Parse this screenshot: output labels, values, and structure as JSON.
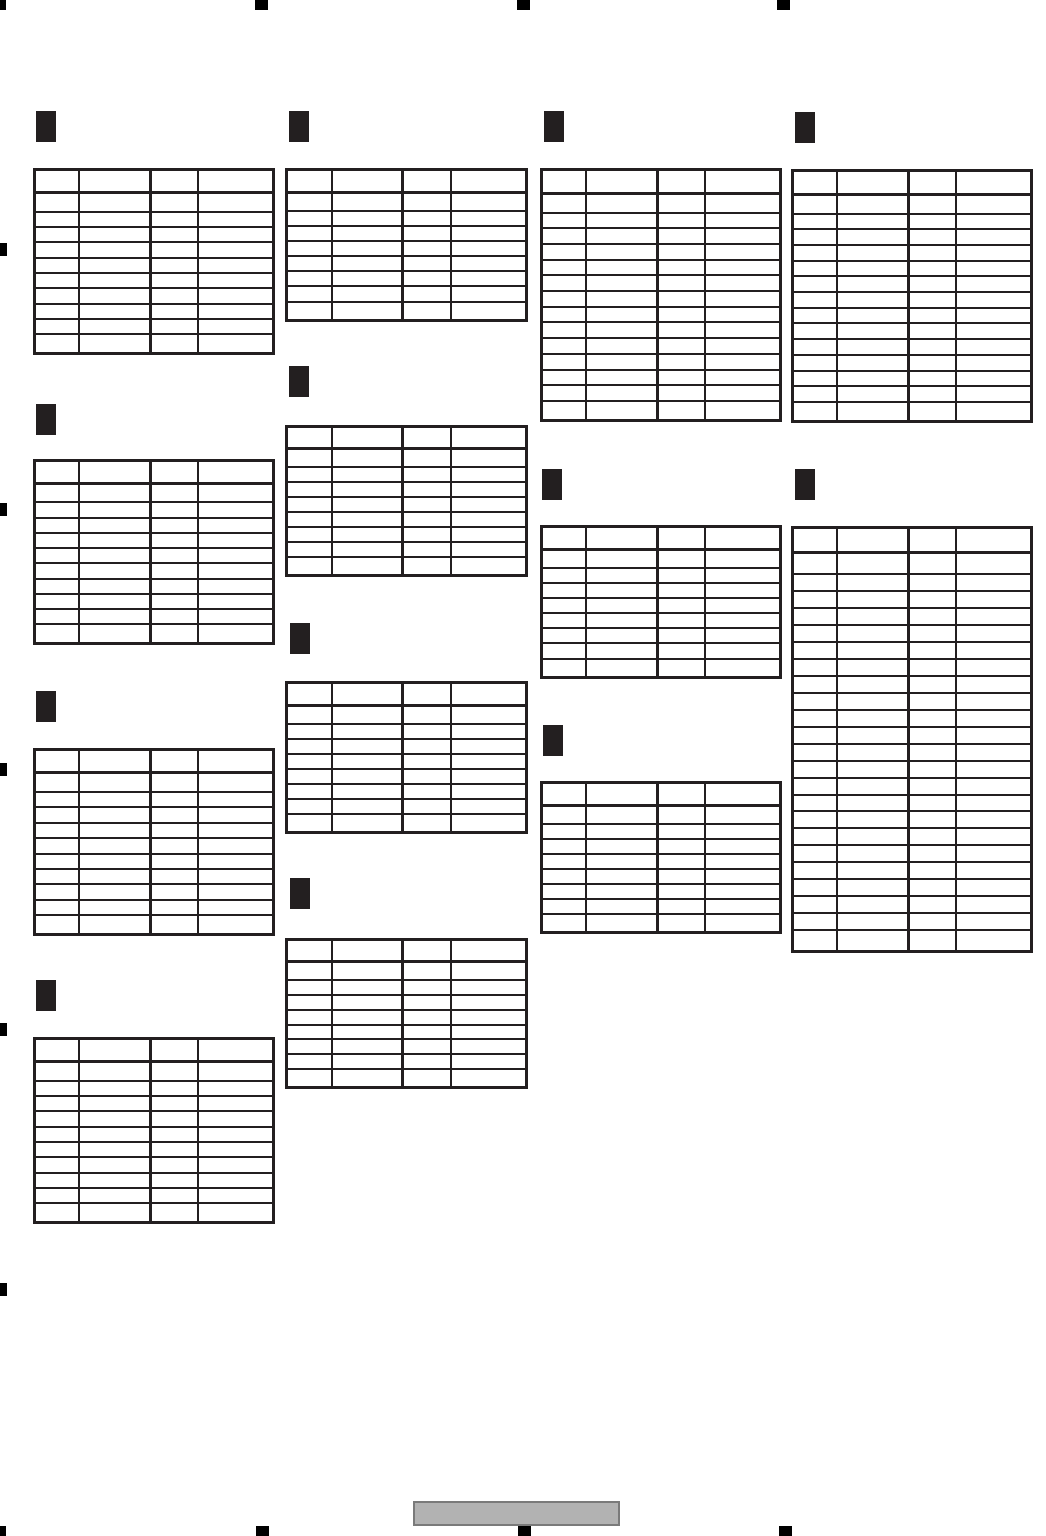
{
  "page": {
    "description": "Blank scanned parts-list template page: 13 empty four-column tables, each preceded by a solid black section marker; no visible text anywhere on the page",
    "background_color": "#ffffff",
    "ink_color": "#231f20"
  },
  "table_template": {
    "column_headers": [
      "",
      "",
      "",
      ""
    ],
    "empty_cell_text": ""
  },
  "sections": [
    {
      "id": "section-1",
      "table_rows": 10
    },
    {
      "id": "section-2",
      "table_rows": 10
    },
    {
      "id": "section-3",
      "table_rows": 10
    },
    {
      "id": "section-4",
      "table_rows": 10
    },
    {
      "id": "section-5",
      "table_rows": 8
    },
    {
      "id": "section-6",
      "table_rows": 8
    },
    {
      "id": "section-7",
      "table_rows": 8
    },
    {
      "id": "section-8",
      "table_rows": 8
    },
    {
      "id": "section-9",
      "table_rows": 14
    },
    {
      "id": "section-10",
      "table_rows": 8
    },
    {
      "id": "section-11",
      "table_rows": 8
    },
    {
      "id": "section-12",
      "table_rows": 14
    },
    {
      "id": "section-13",
      "table_rows": 23
    }
  ],
  "footer_bar": {
    "text": "",
    "fill_color": "#b2b2b2",
    "border_color": "#7a7a7a"
  },
  "registration_marks": {
    "color": "#000000",
    "top_count": 4,
    "left_count": 5,
    "bottom_count": 4
  }
}
